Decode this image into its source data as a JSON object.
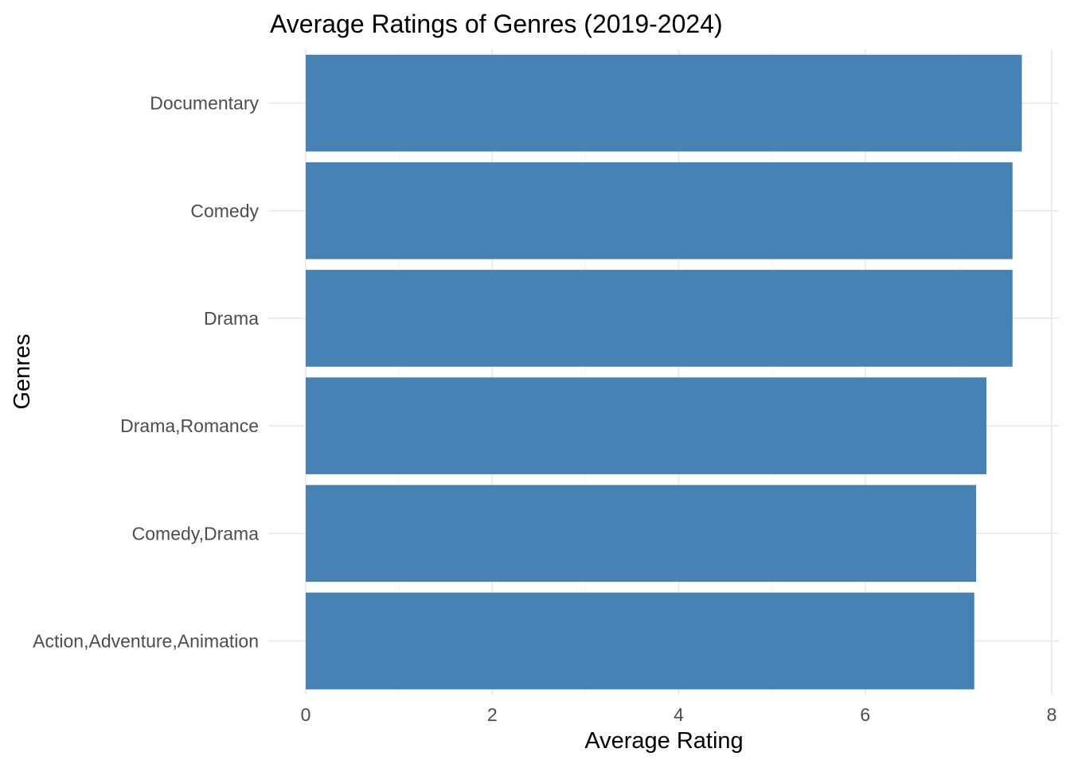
{
  "chart_data": {
    "type": "bar",
    "orientation": "horizontal",
    "title": "Average Ratings of Genres (2019-2024)",
    "xlabel": "Average Rating",
    "ylabel": "Genres",
    "categories": [
      "Documentary",
      "Comedy",
      "Drama",
      "Drama,Romance",
      "Comedy,Drama",
      "Action,Adventure,Animation"
    ],
    "values": [
      7.68,
      7.58,
      7.58,
      7.3,
      7.19,
      7.17
    ],
    "xlim": [
      0,
      8
    ],
    "x_ticks": [
      0,
      2,
      4,
      6,
      8
    ],
    "x_tick_labels": [
      "0",
      "2",
      "4",
      "6",
      "8"
    ],
    "grid": true,
    "legend": "none",
    "bar_color": "#4682B4",
    "background": "#ffffff",
    "grid_color": "#ebebeb"
  }
}
